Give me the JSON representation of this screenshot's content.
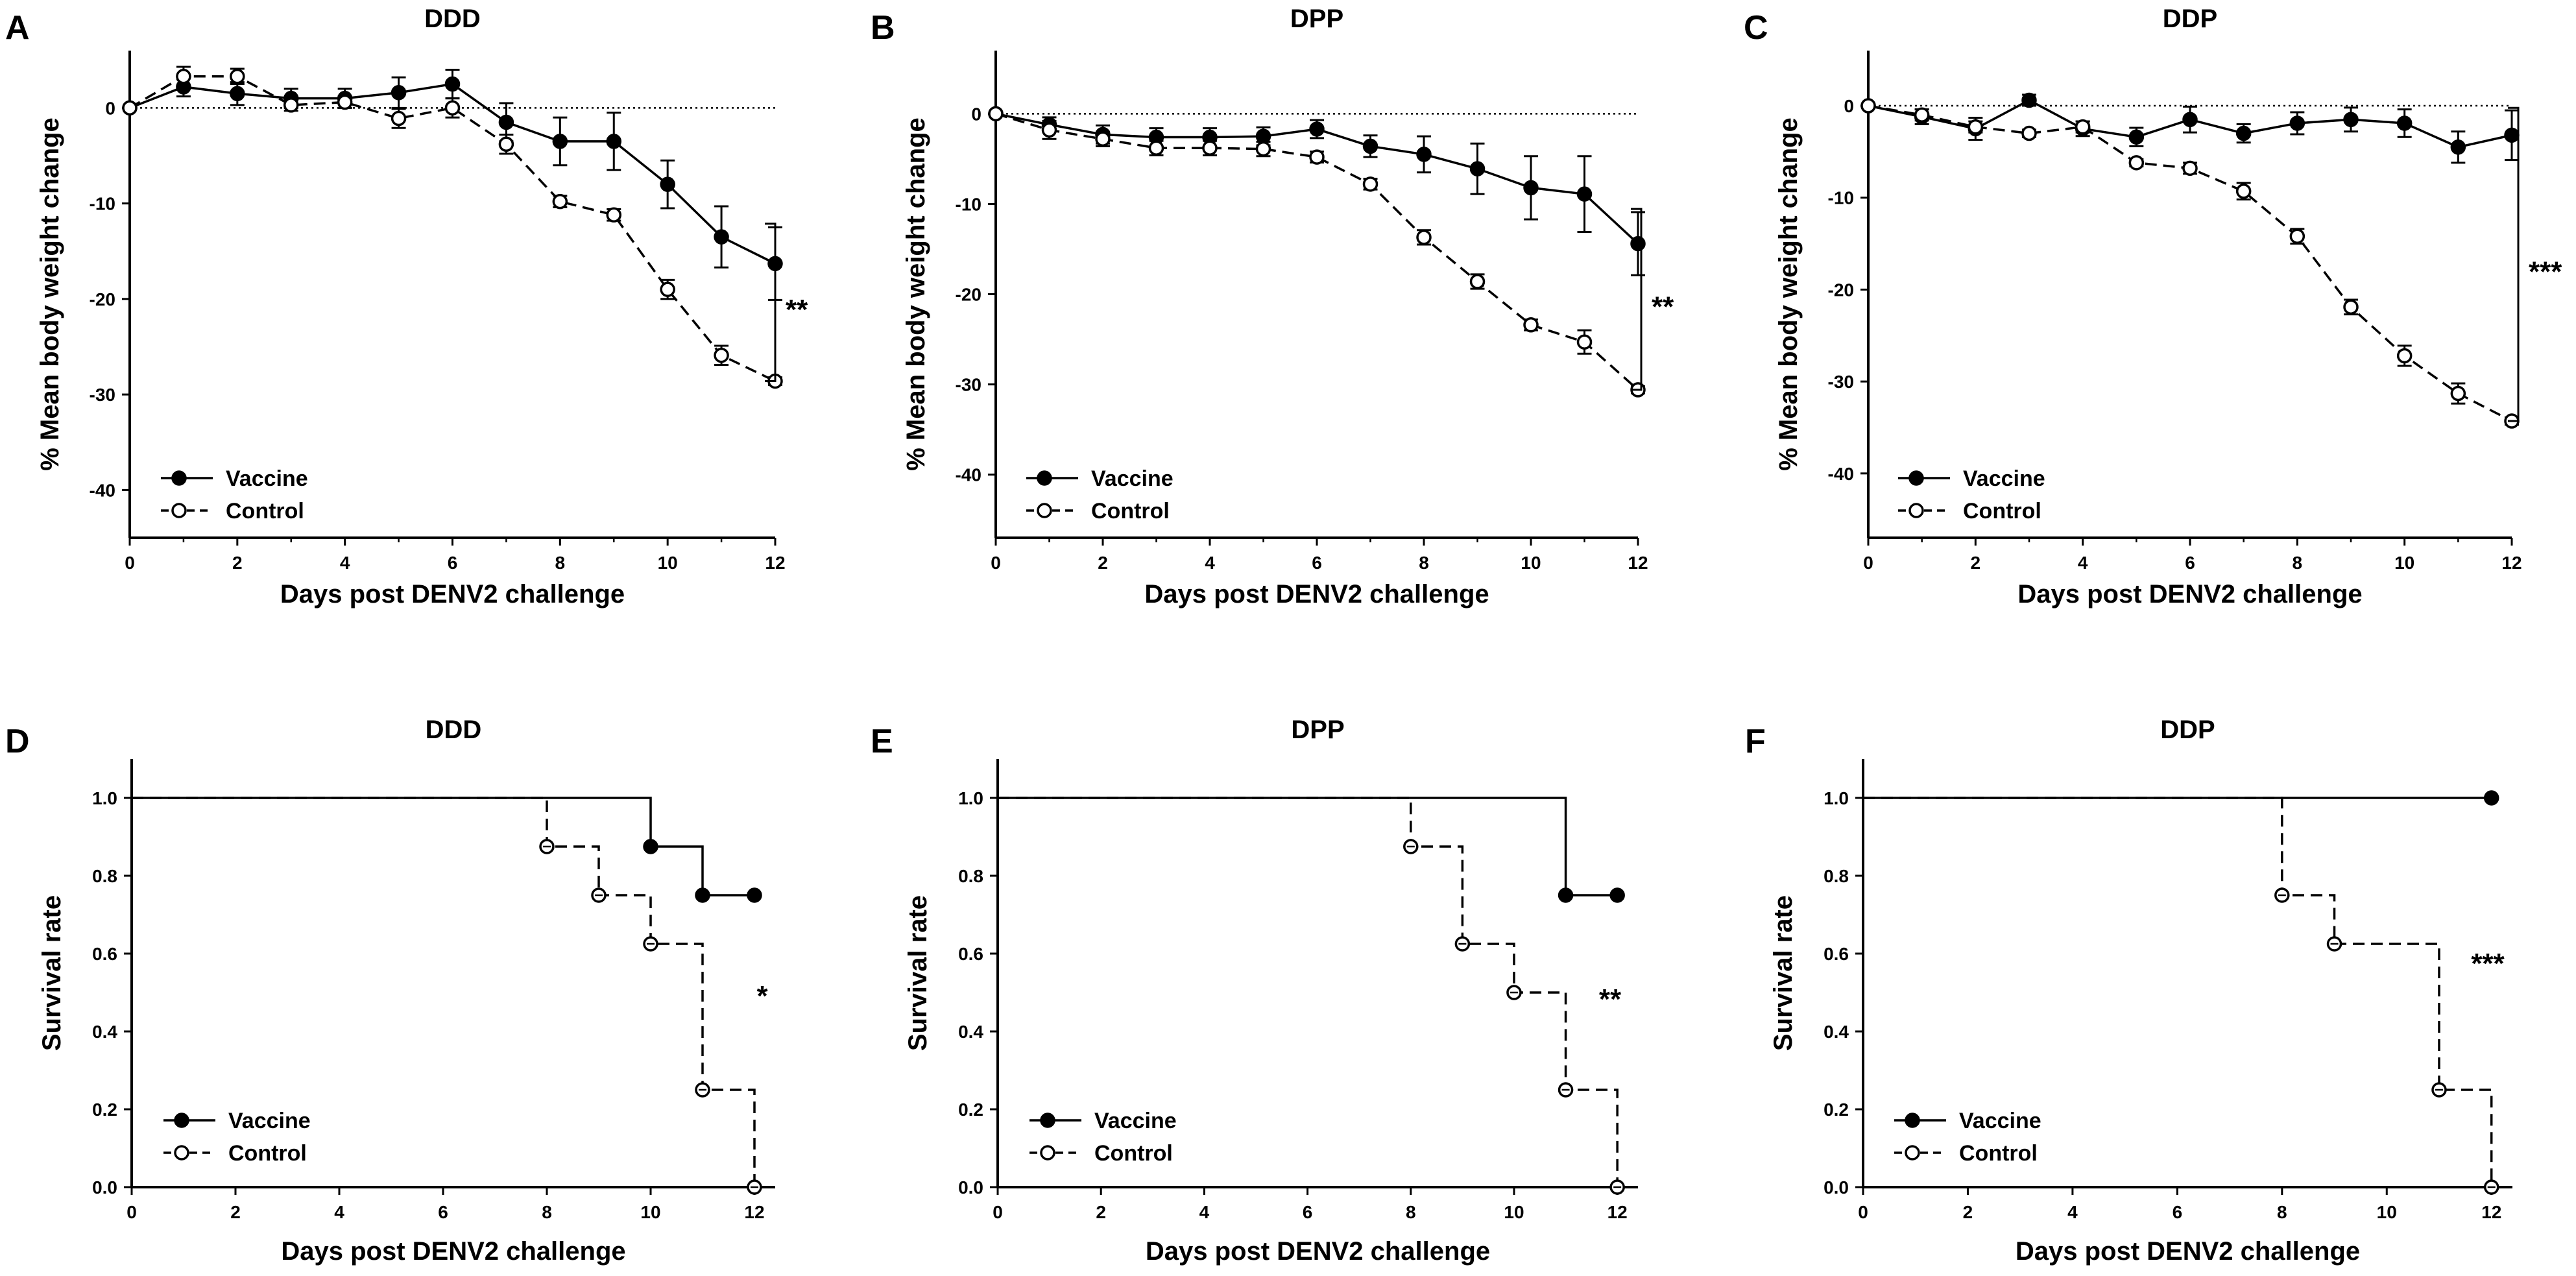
{
  "chart_data": [
    {
      "panel": "A",
      "type": "line",
      "title": "DDD",
      "xlabel": "Days post DENV2 challenge",
      "ylabel": "% Mean body weight change",
      "xlim": [
        0,
        12
      ],
      "ylim": [
        -45,
        6
      ],
      "xticks": [
        0,
        2,
        4,
        6,
        8,
        10,
        12
      ],
      "yticks": [
        0,
        -10,
        -20,
        -30,
        -40
      ],
      "reference_line": 0,
      "series": [
        {
          "name": "Vaccine",
          "marker": "filled",
          "dash": false,
          "x": [
            0,
            1,
            2,
            3,
            4,
            5,
            6,
            7,
            8,
            9,
            10,
            11,
            12
          ],
          "y": [
            0,
            2.2,
            1.5,
            1,
            1,
            1.6,
            2.5,
            -1.5,
            -3.5,
            -3.5,
            -8,
            -13.5,
            -16.3
          ],
          "err": [
            0,
            1,
            1.2,
            1,
            1,
            1.6,
            1.5,
            2,
            2.5,
            3,
            2.5,
            3.2,
            3.8
          ]
        },
        {
          "name": "Control",
          "marker": "open",
          "dash": true,
          "x": [
            0,
            1,
            2,
            3,
            4,
            5,
            6,
            7,
            8,
            9,
            10,
            11,
            12
          ],
          "y": [
            0,
            3.3,
            3.3,
            0.3,
            0.6,
            -1.1,
            0,
            -3.8,
            -9.8,
            -11.2,
            -19,
            -25.9,
            -28.6
          ],
          "err": [
            0,
            1,
            0.8,
            0.6,
            0.6,
            1,
            1,
            1,
            0.6,
            0.6,
            1,
            1,
            0.4
          ]
        }
      ],
      "significance": "**"
    },
    {
      "panel": "B",
      "type": "line",
      "title": "DPP",
      "xlabel": "Days post DENV2 challenge",
      "ylabel": "% Mean body weight change",
      "xlim": [
        0,
        12
      ],
      "ylim": [
        -47,
        7
      ],
      "xticks": [
        0,
        2,
        4,
        6,
        8,
        10,
        12
      ],
      "yticks": [
        0,
        -10,
        -20,
        -30,
        -40
      ],
      "reference_line": 0,
      "series": [
        {
          "name": "Vaccine",
          "marker": "filled",
          "dash": false,
          "x": [
            0,
            1,
            2,
            3,
            4,
            5,
            6,
            7,
            8,
            9,
            10,
            11,
            12
          ],
          "y": [
            0,
            -1.2,
            -2.3,
            -2.6,
            -2.6,
            -2.5,
            -1.7,
            -3.6,
            -4.5,
            -6.1,
            -8.2,
            -8.9,
            -14.4
          ],
          "err": [
            0,
            0.8,
            1,
            1,
            1,
            1,
            1,
            1.2,
            2,
            2.8,
            3.5,
            4.2,
            3.5
          ]
        },
        {
          "name": "Control",
          "marker": "open",
          "dash": true,
          "x": [
            0,
            1,
            2,
            3,
            4,
            5,
            6,
            7,
            8,
            9,
            10,
            11,
            12
          ],
          "y": [
            0,
            -1.8,
            -2.8,
            -3.8,
            -3.8,
            -3.9,
            -4.8,
            -7.8,
            -13.7,
            -18.6,
            -23.4,
            -25.3,
            -30.6
          ],
          "err": [
            0,
            1,
            0.8,
            0.8,
            0.8,
            0.8,
            0.6,
            0.6,
            0.8,
            0.8,
            0.6,
            1.3,
            0.4
          ]
        }
      ],
      "significance": "**"
    },
    {
      "panel": "C",
      "type": "line",
      "title": "DDP",
      "xlabel": "Days post DENV2 challenge",
      "ylabel": "% Mean body weight change",
      "xlim": [
        0,
        12
      ],
      "ylim": [
        -47,
        6
      ],
      "xticks": [
        0,
        2,
        4,
        6,
        8,
        10,
        12
      ],
      "yticks": [
        0,
        -10,
        -20,
        -30,
        -40
      ],
      "reference_line": 0,
      "series": [
        {
          "name": "Vaccine",
          "marker": "filled",
          "dash": false,
          "x": [
            0,
            1,
            2,
            3,
            4,
            5,
            6,
            7,
            8,
            9,
            10,
            11,
            12
          ],
          "y": [
            0,
            -1.2,
            -2.5,
            0.6,
            -2.5,
            -3.4,
            -1.5,
            -3,
            -1.9,
            -1.5,
            -1.9,
            -4.5,
            -3.2
          ],
          "err": [
            0,
            0.8,
            1.2,
            0.6,
            0.8,
            1,
            1.4,
            1,
            1.2,
            1.3,
            1.5,
            1.7,
            2.7
          ]
        },
        {
          "name": "Control",
          "marker": "open",
          "dash": true,
          "x": [
            0,
            1,
            2,
            3,
            4,
            5,
            6,
            7,
            8,
            9,
            10,
            11,
            12
          ],
          "y": [
            0,
            -1,
            -2.3,
            -3,
            -2.3,
            -6.2,
            -6.8,
            -9.3,
            -14.2,
            -21.9,
            -27.2,
            -31.3,
            -34.3
          ],
          "err": [
            0,
            0.6,
            0.6,
            0.4,
            0.6,
            0.4,
            0.6,
            0.9,
            0.8,
            0.8,
            1.1,
            1.1,
            0.4
          ]
        }
      ],
      "significance": "***"
    },
    {
      "panel": "D",
      "type": "line",
      "subtype": "step-survival",
      "title": "DDD",
      "xlabel": "Days post DENV2 challenge",
      "ylabel": "Survival rate",
      "xlim": [
        0,
        12.4
      ],
      "ylim": [
        0,
        1.1
      ],
      "xticks": [
        0,
        2,
        4,
        6,
        8,
        10,
        12
      ],
      "yticks": [
        0.0,
        0.2,
        0.4,
        0.6,
        0.8,
        1.0
      ],
      "series": [
        {
          "name": "Vaccine",
          "marker": "filled",
          "dash": false,
          "x": [
            0,
            10,
            11,
            12
          ],
          "y": [
            1.0,
            0.875,
            0.75,
            0.75
          ],
          "x_end": 12
        },
        {
          "name": "Control",
          "marker": "open",
          "dash": true,
          "x": [
            0,
            8,
            9,
            10,
            11,
            12
          ],
          "y": [
            1.0,
            0.875,
            0.75,
            0.625,
            0.25,
            0.0
          ],
          "x_end": 12
        }
      ],
      "significance": "*"
    },
    {
      "panel": "E",
      "type": "line",
      "subtype": "step-survival",
      "title": "DPP",
      "xlabel": "Days post DENV2 challenge",
      "ylabel": "Survival rate",
      "xlim": [
        0,
        12.4
      ],
      "ylim": [
        0,
        1.1
      ],
      "xticks": [
        0,
        2,
        4,
        6,
        8,
        10,
        12
      ],
      "yticks": [
        0.0,
        0.2,
        0.4,
        0.6,
        0.8,
        1.0
      ],
      "series": [
        {
          "name": "Vaccine",
          "marker": "filled",
          "dash": false,
          "x": [
            0,
            11,
            12
          ],
          "y": [
            1.0,
            0.75,
            0.75
          ],
          "x_end": 12
        },
        {
          "name": "Control",
          "marker": "open",
          "dash": true,
          "x": [
            0,
            8,
            9,
            10,
            11,
            12
          ],
          "y": [
            1.0,
            0.875,
            0.625,
            0.5,
            0.25,
            0.0
          ],
          "x_end": 12
        }
      ],
      "significance": "**"
    },
    {
      "panel": "F",
      "type": "line",
      "subtype": "step-survival",
      "title": "DDP",
      "xlabel": "Days post DENV2 challenge",
      "ylabel": "Survival rate",
      "xlim": [
        0,
        12.4
      ],
      "ylim": [
        0,
        1.1
      ],
      "xticks": [
        0,
        2,
        4,
        6,
        8,
        10,
        12
      ],
      "yticks": [
        0.0,
        0.2,
        0.4,
        0.6,
        0.8,
        1.0
      ],
      "series": [
        {
          "name": "Vaccine",
          "marker": "filled",
          "dash": false,
          "x": [
            0,
            12
          ],
          "y": [
            1.0,
            1.0
          ],
          "x_end": 12
        },
        {
          "name": "Control",
          "marker": "open",
          "dash": true,
          "x": [
            0,
            8,
            9,
            11,
            12
          ],
          "y": [
            1.0,
            0.75,
            0.625,
            0.25,
            0.0
          ],
          "x_end": 12
        }
      ],
      "significance": "***"
    }
  ]
}
